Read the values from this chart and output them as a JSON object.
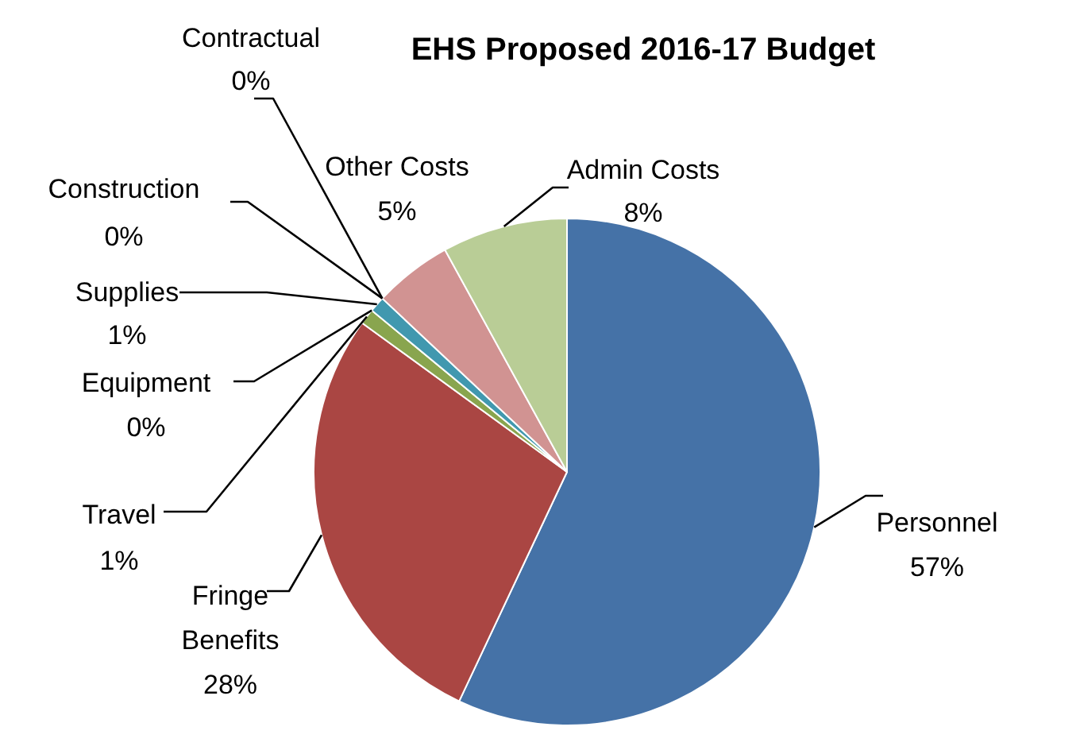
{
  "chart_data": {
    "type": "pie",
    "title": "EHS Proposed 2016-17 Budget",
    "categories": [
      "Personnel",
      "Fringe\nBenefits",
      "Travel",
      "Equipment",
      "Supplies",
      "Construction",
      "Contractual",
      "Other Costs",
      "Admin Costs"
    ],
    "values": [
      57,
      28,
      1,
      0,
      1,
      0,
      0,
      5,
      8
    ],
    "value_labels": [
      "57%",
      "28%",
      "1%",
      "0%",
      "1%",
      "0%",
      "0%",
      "5%",
      "8%"
    ],
    "colors": [
      "#4572a7",
      "#aa4643",
      "#89a54e",
      "#71588f",
      "#4198af",
      "#db843d",
      "#93a9cf",
      "#d19392",
      "#b9cd96"
    ]
  }
}
